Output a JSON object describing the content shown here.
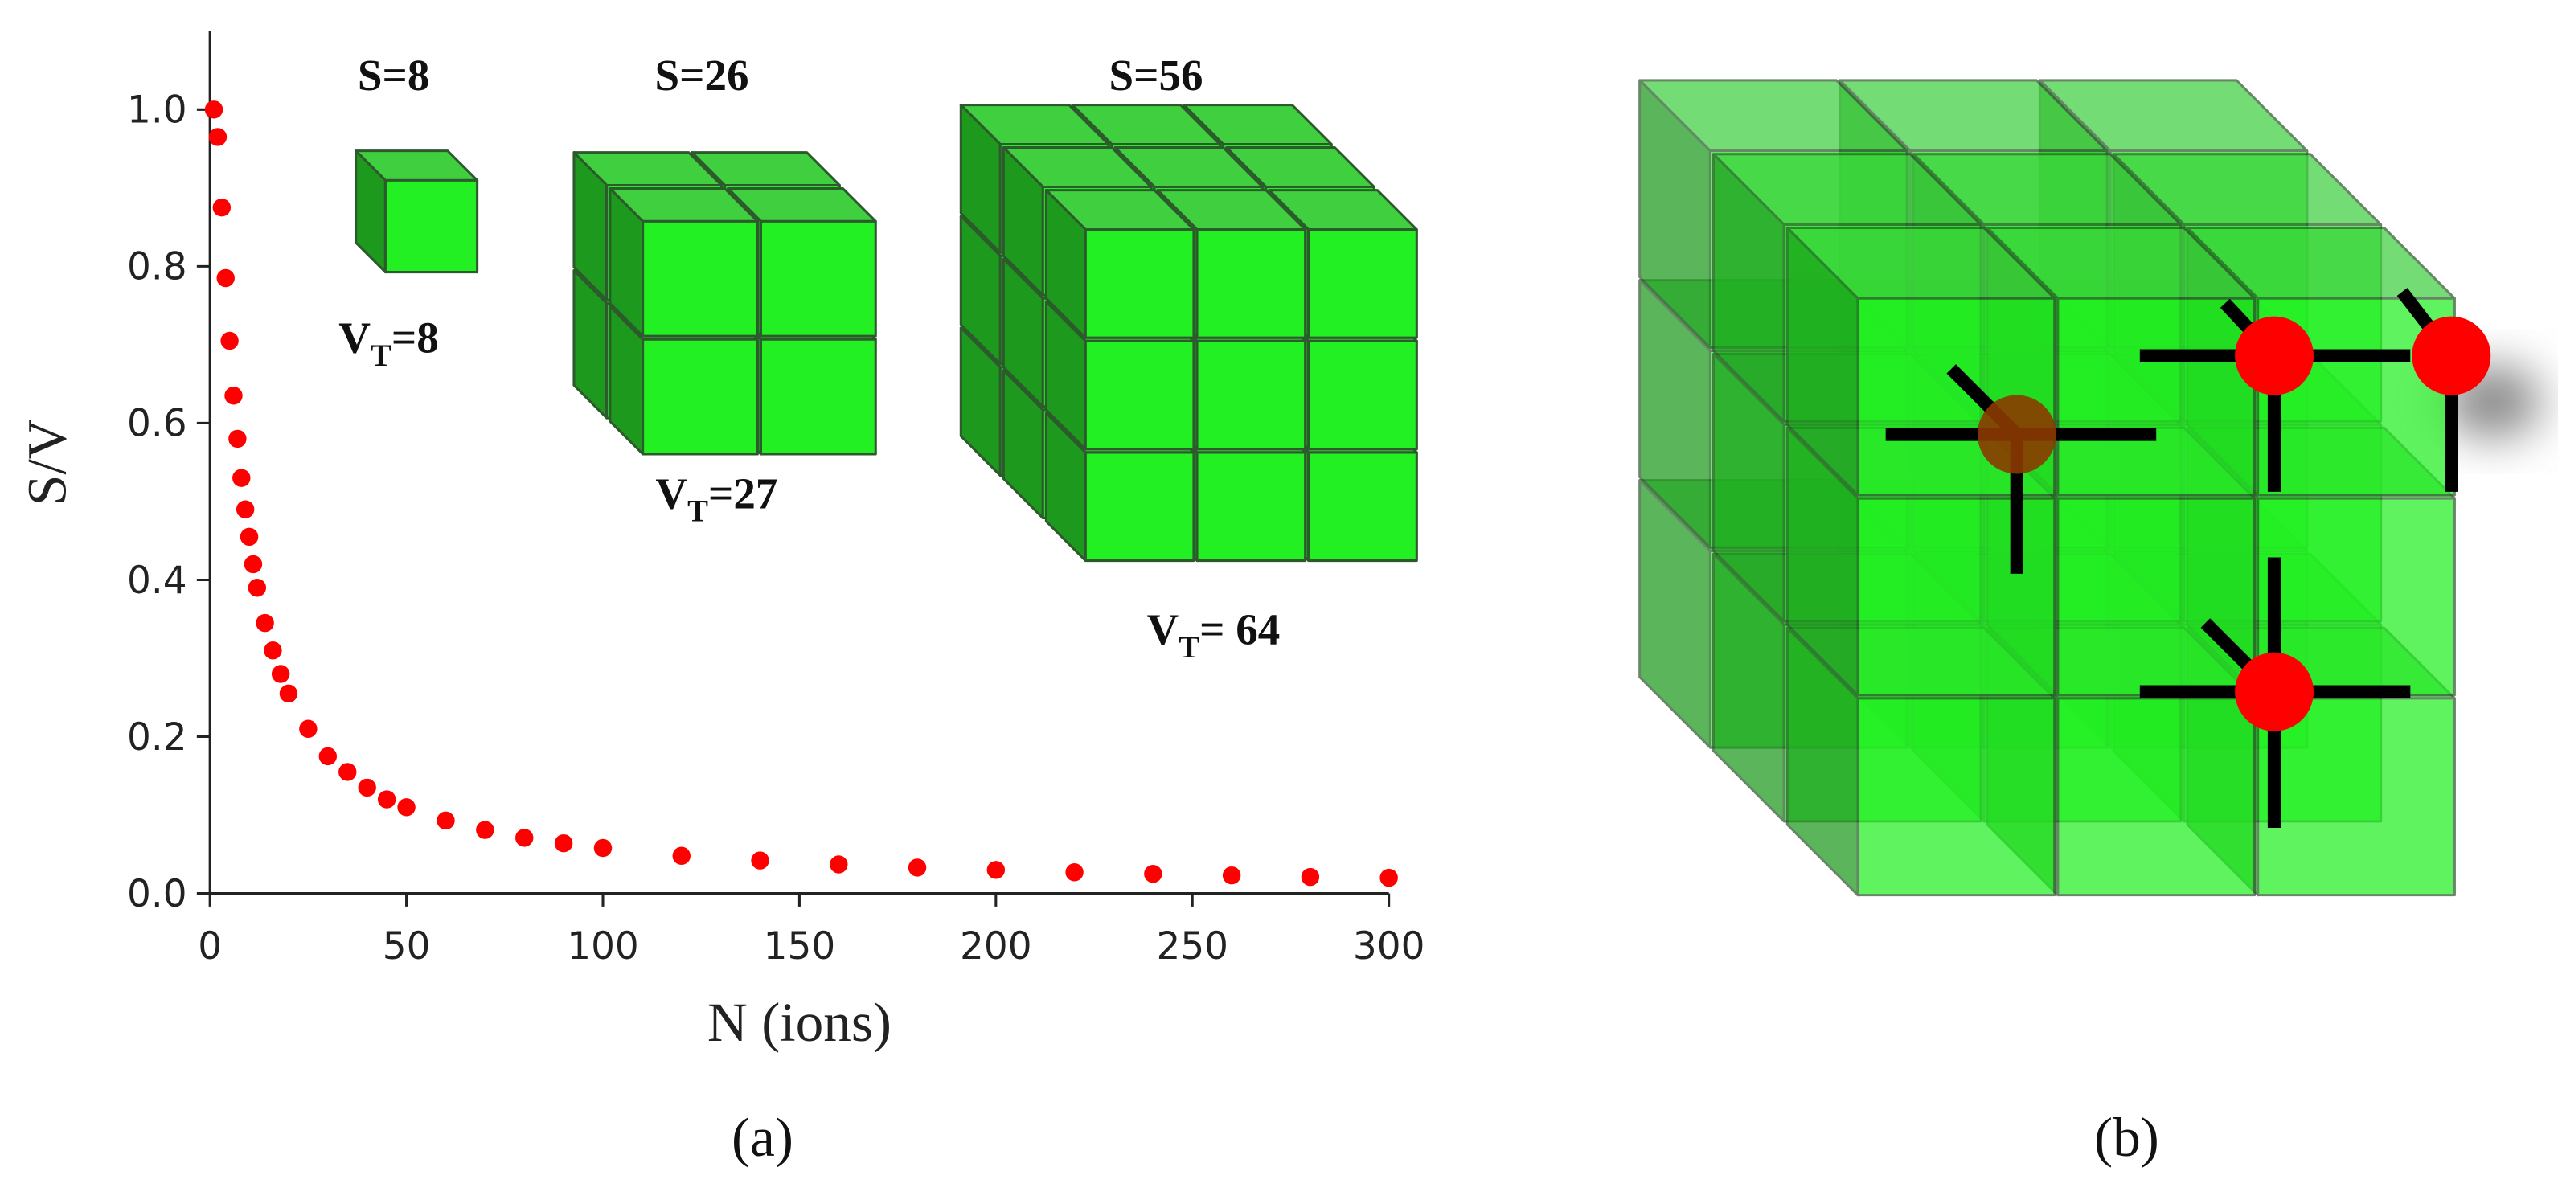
{
  "chart_data": {
    "type": "scatter",
    "x": [
      1,
      2,
      3,
      4,
      5,
      6,
      7,
      8,
      9,
      10,
      11,
      12,
      14,
      16,
      18,
      20,
      25,
      30,
      35,
      40,
      45,
      50,
      60,
      70,
      80,
      90,
      100,
      120,
      140,
      160,
      180,
      200,
      220,
      240,
      260,
      280,
      300
    ],
    "values": [
      1.0,
      0.965,
      0.875,
      0.785,
      0.705,
      0.635,
      0.58,
      0.53,
      0.49,
      0.455,
      0.42,
      0.39,
      0.345,
      0.31,
      0.28,
      0.255,
      0.21,
      0.175,
      0.155,
      0.135,
      0.12,
      0.11,
      0.093,
      0.081,
      0.071,
      0.064,
      0.058,
      0.048,
      0.042,
      0.037,
      0.033,
      0.03,
      0.027,
      0.025,
      0.023,
      0.021,
      0.02
    ],
    "color": "#ff0000",
    "xlabel": "N (ions)",
    "ylabel": "S/V",
    "xlim": [
      0,
      300
    ],
    "xticks": [
      0,
      50,
      100,
      150,
      200,
      250,
      300
    ],
    "ylim": [
      0,
      1.1
    ],
    "yticks": [
      {
        "value": 0,
        "label": "0.0"
      },
      {
        "value": 0.2,
        "label": "0.2"
      },
      {
        "value": 0.4,
        "label": "0.4"
      },
      {
        "value": 0.6,
        "label": "0.6"
      },
      {
        "value": 0.8,
        "label": "0.8"
      },
      {
        "value": 1,
        "label": "1.0"
      }
    ],
    "annotations": [
      {
        "text": "S=8"
      },
      {
        "text": "S=26"
      },
      {
        "text": "S=56"
      },
      {
        "main": "V",
        "sub": "T",
        "rest": "=8"
      },
      {
        "main": "V",
        "sub": "T",
        "rest": "=27"
      },
      {
        "main": "V",
        "sub": "T",
        "rest": "= 64"
      }
    ]
  },
  "panel_labels": [
    "(a)",
    "(b)"
  ]
}
